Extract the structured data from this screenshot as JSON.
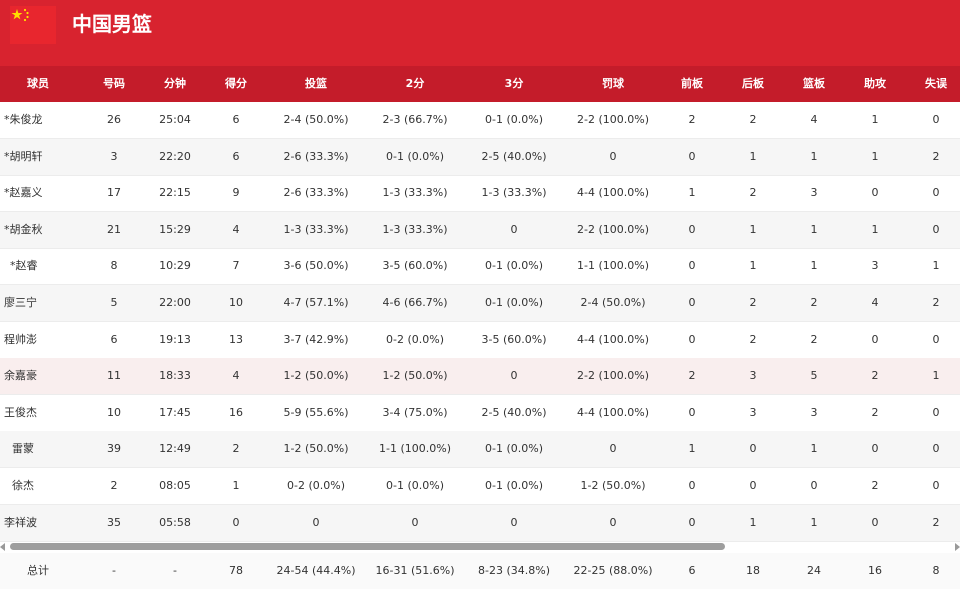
{
  "team": {
    "name": "中国男篮"
  },
  "columns": [
    "球员",
    "号码",
    "分钟",
    "得分",
    "投篮",
    "2分",
    "3分",
    "罚球",
    "前板",
    "后板",
    "篮板",
    "助攻",
    "失误"
  ],
  "players": [
    [
      "*朱俊龙",
      "26",
      "25:04",
      "6",
      "2-4 (50.0%)",
      "2-3 (66.7%)",
      "0-1 (0.0%)",
      "2-2 (100.0%)",
      "2",
      "2",
      "4",
      "1",
      "0"
    ],
    [
      "*胡明轩",
      "3",
      "22:20",
      "6",
      "2-6 (33.3%)",
      "0-1 (0.0%)",
      "2-5 (40.0%)",
      "0",
      "0",
      "1",
      "1",
      "1",
      "2"
    ],
    [
      "*赵嘉义",
      "17",
      "22:15",
      "9",
      "2-6 (33.3%)",
      "1-3 (33.3%)",
      "1-3 (33.3%)",
      "4-4 (100.0%)",
      "1",
      "2",
      "3",
      "0",
      "0"
    ],
    [
      "*胡金秋",
      "21",
      "15:29",
      "4",
      "1-3 (33.3%)",
      "1-3 (33.3%)",
      "0",
      "2-2 (100.0%)",
      "0",
      "1",
      "1",
      "1",
      "0"
    ],
    [
      "*赵睿",
      "8",
      "10:29",
      "7",
      "3-6 (50.0%)",
      "3-5 (60.0%)",
      "0-1 (0.0%)",
      "1-1 (100.0%)",
      "0",
      "1",
      "1",
      "3",
      "1"
    ],
    [
      "廖三宁",
      "5",
      "22:00",
      "10",
      "4-7 (57.1%)",
      "4-6 (66.7%)",
      "0-1 (0.0%)",
      "2-4 (50.0%)",
      "0",
      "2",
      "2",
      "4",
      "2"
    ],
    [
      "程帅澎",
      "6",
      "19:13",
      "13",
      "3-7 (42.9%)",
      "0-2 (0.0%)",
      "3-5 (60.0%)",
      "4-4 (100.0%)",
      "0",
      "2",
      "2",
      "0",
      "0"
    ],
    [
      "余嘉豪",
      "11",
      "18:33",
      "4",
      "1-2 (50.0%)",
      "1-2 (50.0%)",
      "0",
      "2-2 (100.0%)",
      "2",
      "3",
      "5",
      "2",
      "1"
    ],
    [
      "王俊杰",
      "10",
      "17:45",
      "16",
      "5-9 (55.6%)",
      "3-4 (75.0%)",
      "2-5 (40.0%)",
      "4-4 (100.0%)",
      "0",
      "3",
      "3",
      "2",
      "0"
    ],
    [
      "雷蒙",
      "39",
      "12:49",
      "2",
      "1-2 (50.0%)",
      "1-1 (100.0%)",
      "0-1 (0.0%)",
      "0",
      "1",
      "0",
      "1",
      "0",
      "0"
    ],
    [
      "徐杰",
      "2",
      "08:05",
      "1",
      "0-2 (0.0%)",
      "0-1 (0.0%)",
      "0-1 (0.0%)",
      "1-2 (50.0%)",
      "0",
      "0",
      "0",
      "2",
      "0"
    ],
    [
      "李祥波",
      "35",
      "05:58",
      "0",
      "0",
      "0",
      "0",
      "0",
      "0",
      "1",
      "1",
      "0",
      "2"
    ]
  ],
  "totals": [
    "总计",
    "-",
    "-",
    "78",
    "24-54 (44.4%)",
    "16-31 (51.6%)",
    "8-23 (34.8%)",
    "22-25 (88.0%)",
    "6",
    "18",
    "24",
    "16",
    "8"
  ],
  "colors": {
    "header": "#d8232f",
    "column_header": "#c41c2a",
    "highlight_row": "#f9eeee"
  }
}
